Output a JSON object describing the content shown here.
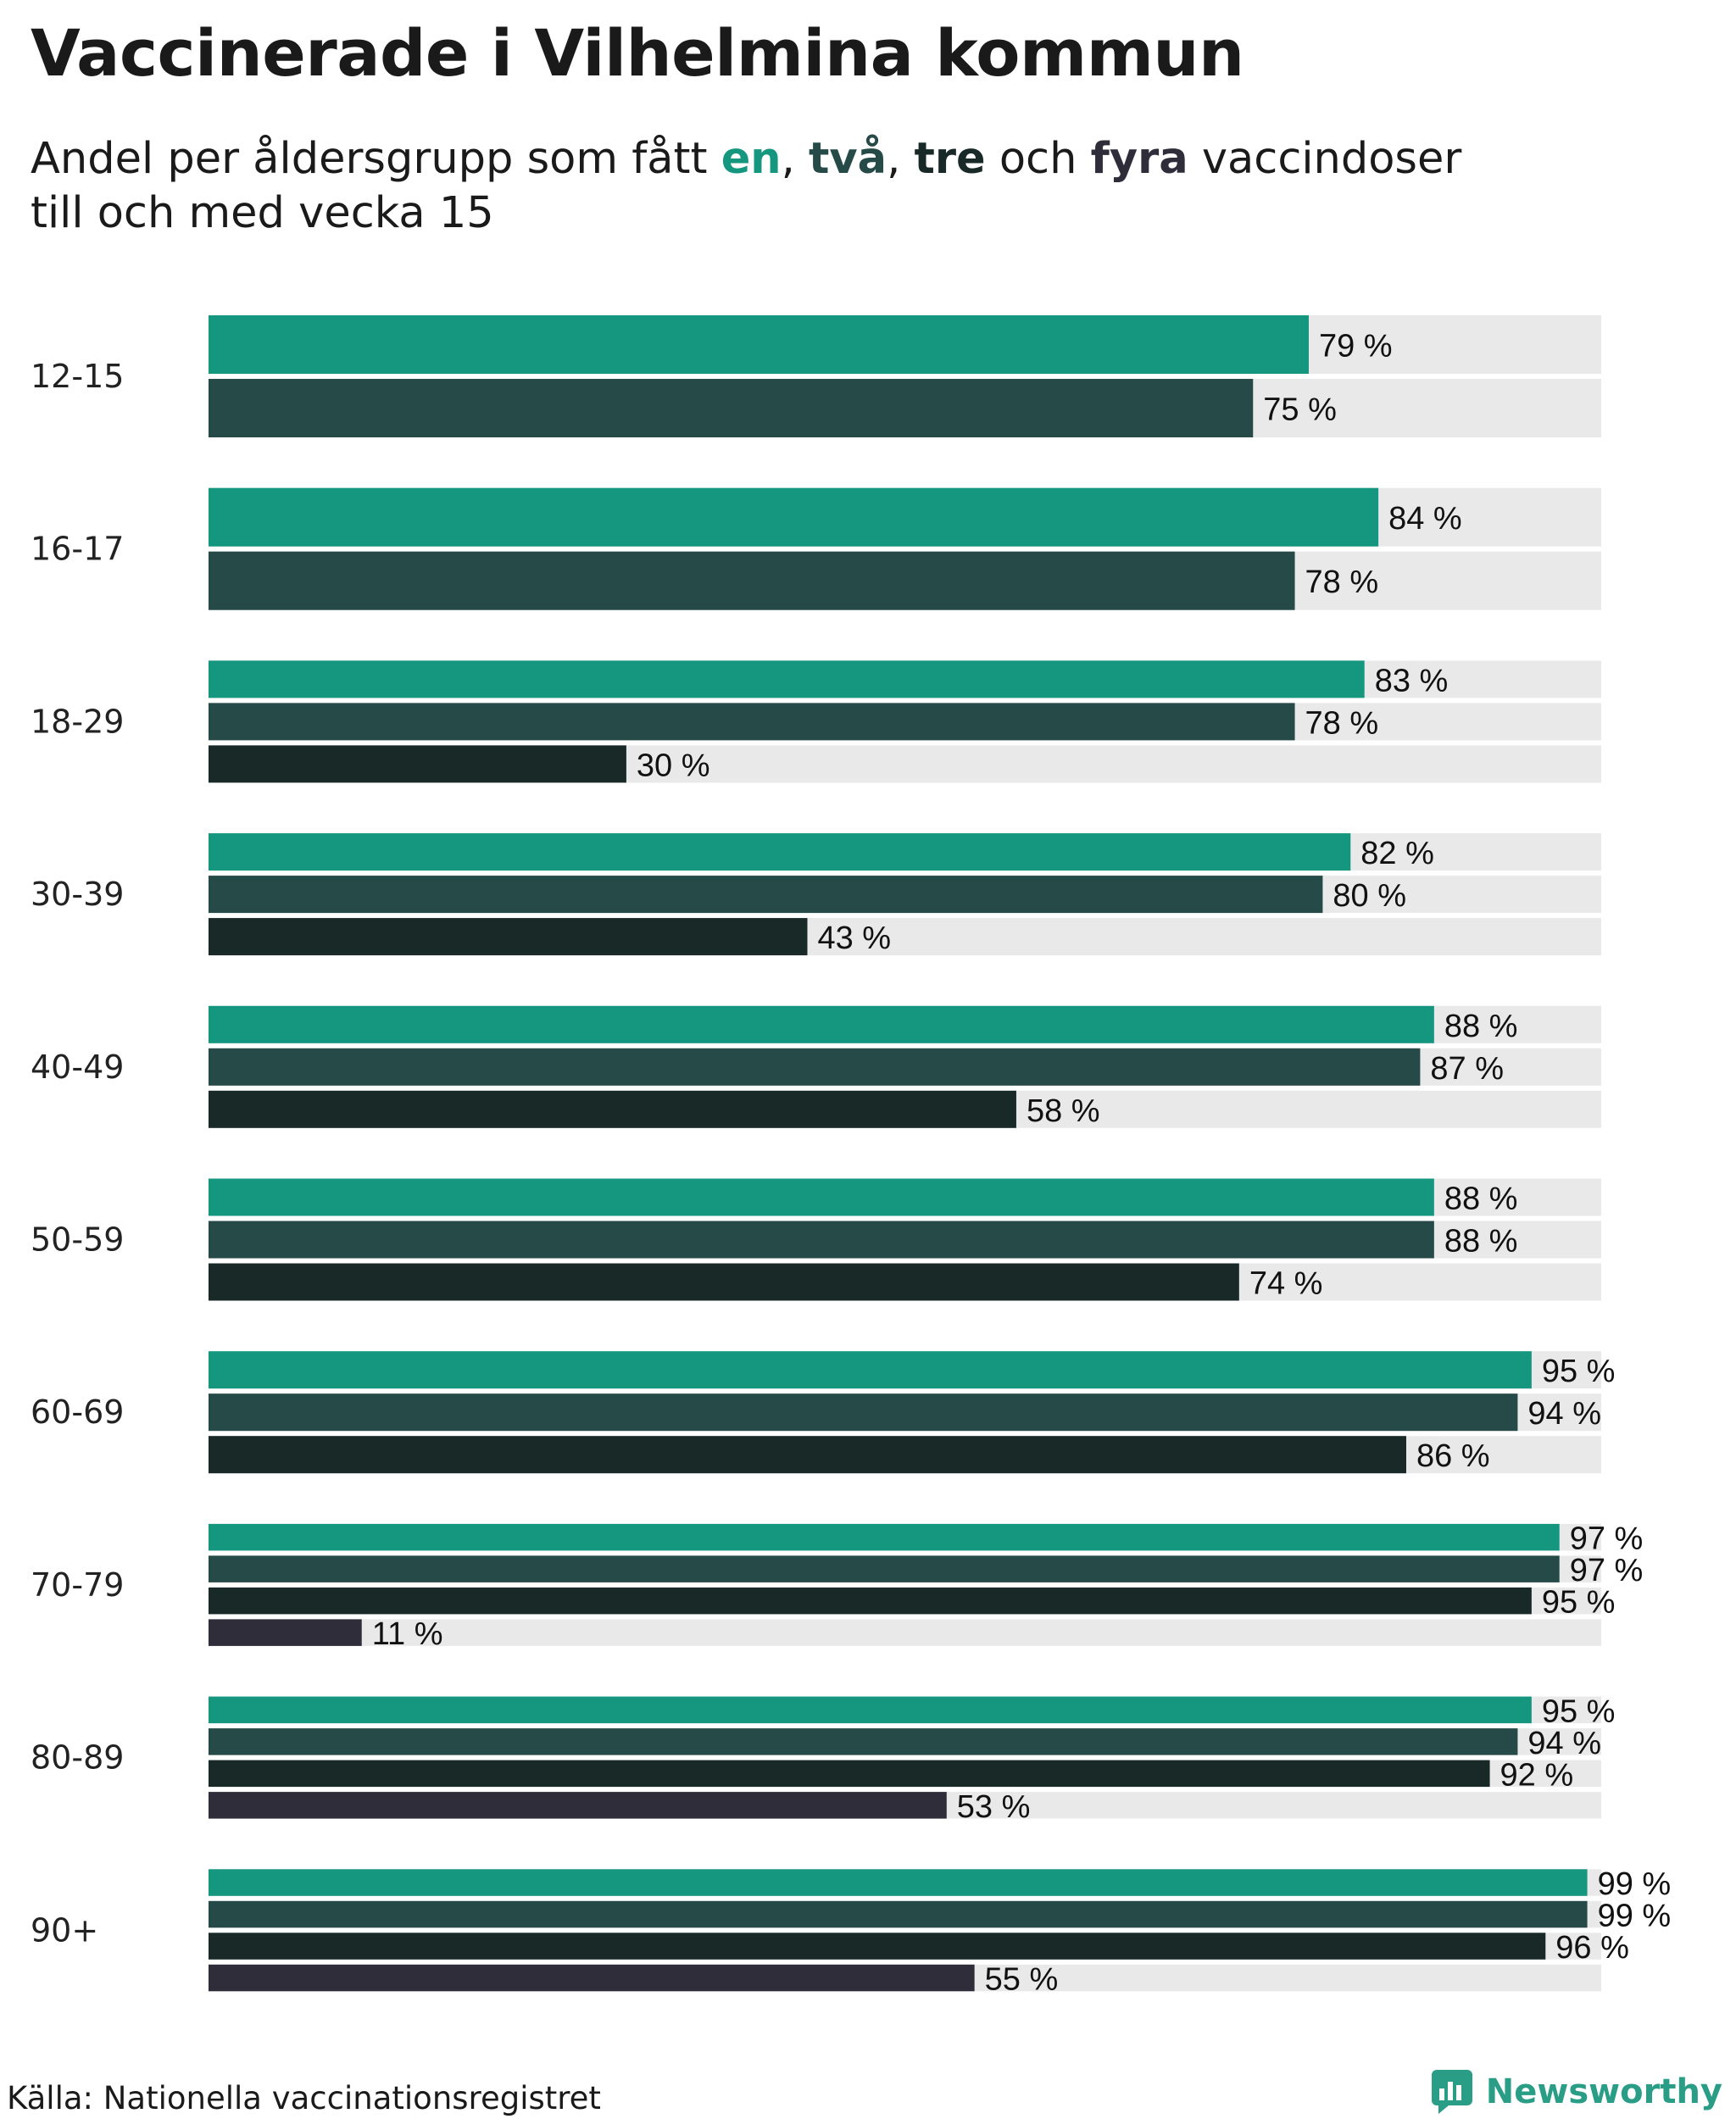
{
  "title": "Vaccinerade i Vilhelmina kommun",
  "subtitle": {
    "prefix": "Andel per åldersgrupp som fått ",
    "en": "en",
    "sep1": ", ",
    "tva": "två",
    "sep2": ", ",
    "tre": "tre",
    "och": " och ",
    "fyra": "fyra",
    "suffix": " vaccindoser",
    "line2": "till och med vecka 15"
  },
  "footer": {
    "source": "Källa: Nationella vaccinationsregistret",
    "brand": "Newsworthy",
    "brand_icon": "newsworthy-logo-icon"
  },
  "colors": {
    "en": "#14967f",
    "tva": "#264a47",
    "tre": "#182928",
    "fyra": "#2f2d3a",
    "track": "#e9e9e9",
    "brand": "#2a9d87"
  },
  "chart_data": {
    "type": "bar",
    "orientation": "horizontal",
    "xlim": [
      0,
      100
    ],
    "unit": "%",
    "categories": [
      "12-15",
      "16-17",
      "18-29",
      "30-39",
      "40-49",
      "50-59",
      "60-69",
      "70-79",
      "80-89",
      "90+"
    ],
    "series": [
      {
        "name": "en",
        "values": [
          79,
          84,
          83,
          82,
          88,
          88,
          95,
          97,
          95,
          99
        ]
      },
      {
        "name": "två",
        "values": [
          75,
          78,
          78,
          80,
          87,
          88,
          94,
          97,
          94,
          99
        ]
      },
      {
        "name": "tre",
        "values": [
          null,
          null,
          30,
          43,
          58,
          74,
          86,
          95,
          92,
          96
        ]
      },
      {
        "name": "fyra",
        "values": [
          null,
          null,
          null,
          null,
          null,
          null,
          null,
          11,
          53,
          55
        ]
      }
    ],
    "labels": [
      [
        "79 %",
        "75 %"
      ],
      [
        "84 %",
        "78 %"
      ],
      [
        "83 %",
        "78 %",
        "30 %"
      ],
      [
        "82 %",
        "80 %",
        "43 %"
      ],
      [
        "88 %",
        "87 %",
        "58 %"
      ],
      [
        "88 %",
        "88 %",
        "74 %"
      ],
      [
        "95 %",
        "94 %",
        "86 %"
      ],
      [
        "97 %",
        "97 %",
        "95 %",
        "11 %"
      ],
      [
        "95 %",
        "94 %",
        "92 %",
        "53 %"
      ],
      [
        "99 %",
        "99 %",
        "96 %",
        "55 %"
      ]
    ],
    "grid": false,
    "legend": "inline in subtitle"
  }
}
